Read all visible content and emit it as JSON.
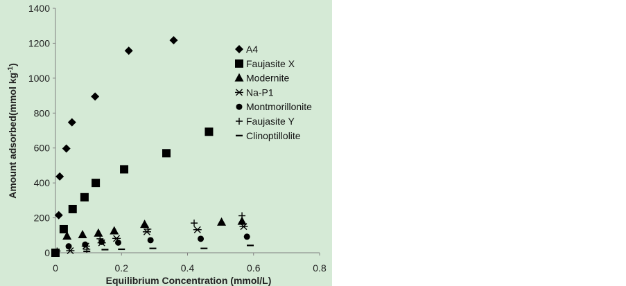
{
  "chart_data": {
    "type": "scatter",
    "background": "#d5ead6",
    "xlabel": "Equilibrium Concentration (mmol/L)",
    "ylabel": "Amount adsorbed(mmol kg",
    "ylabel_sup": "-1",
    "ylabel_end": ")",
    "xlim": [
      0,
      0.8
    ],
    "ylim": [
      0,
      1400
    ],
    "x_ticks": [
      {
        "v": 0,
        "label": "0"
      },
      {
        "v": 0.2,
        "label": "0.2"
      },
      {
        "v": 0.4,
        "label": "0.4"
      },
      {
        "v": 0.6,
        "label": "0.6"
      },
      {
        "v": 0.8,
        "label": "0.8"
      }
    ],
    "y_ticks": [
      {
        "v": 0,
        "label": "0"
      },
      {
        "v": 200,
        "label": "200"
      },
      {
        "v": 400,
        "label": "400"
      },
      {
        "v": 600,
        "label": "600"
      },
      {
        "v": 800,
        "label": "800"
      },
      {
        "v": 1000,
        "label": "1000"
      },
      {
        "v": 1200,
        "label": "1200"
      },
      {
        "v": 1400,
        "label": "1400"
      }
    ],
    "grid": false,
    "legend_position": "right",
    "series": [
      {
        "name": "A4",
        "marker": "diamond",
        "points": [
          [
            0.01,
            215
          ],
          [
            0.013,
            437
          ],
          [
            0.033,
            597
          ],
          [
            0.05,
            747
          ],
          [
            0.12,
            895
          ],
          [
            0.222,
            1157
          ],
          [
            0.358,
            1217
          ]
        ]
      },
      {
        "name": "Faujasite X",
        "marker": "square",
        "points": [
          [
            0.0,
            0
          ],
          [
            0.025,
            135
          ],
          [
            0.052,
            250
          ],
          [
            0.088,
            318
          ],
          [
            0.122,
            400
          ],
          [
            0.208,
            478
          ],
          [
            0.336,
            570
          ],
          [
            0.465,
            693
          ]
        ]
      },
      {
        "name": "Modernite",
        "marker": "triangle",
        "points": [
          [
            0.035,
            95
          ],
          [
            0.082,
            103
          ],
          [
            0.13,
            112
          ],
          [
            0.178,
            125
          ],
          [
            0.27,
            162
          ],
          [
            0.503,
            175
          ],
          [
            0.565,
            180
          ]
        ]
      },
      {
        "name": "Na-P1",
        "marker": "asterisk",
        "points": [
          [
            0.045,
            12
          ],
          [
            0.092,
            38
          ],
          [
            0.14,
            57
          ],
          [
            0.185,
            82
          ],
          [
            0.277,
            120
          ],
          [
            0.43,
            132
          ],
          [
            0.57,
            150
          ]
        ]
      },
      {
        "name": "Montmorillonite",
        "marker": "circle",
        "points": [
          [
            0.04,
            37
          ],
          [
            0.09,
            47
          ],
          [
            0.14,
            62
          ],
          [
            0.19,
            58
          ],
          [
            0.288,
            72
          ],
          [
            0.44,
            80
          ],
          [
            0.58,
            92
          ]
        ]
      },
      {
        "name": "Faujasite Y",
        "marker": "plus",
        "points": [
          [
            0.005,
            10
          ],
          [
            0.095,
            20
          ],
          [
            0.135,
            80
          ],
          [
            0.28,
            135
          ],
          [
            0.42,
            170
          ],
          [
            0.565,
            212
          ]
        ]
      },
      {
        "name": "Clinoptillolite",
        "marker": "dash",
        "points": [
          [
            0.0,
            3
          ],
          [
            0.095,
            8
          ],
          [
            0.15,
            18
          ],
          [
            0.2,
            20
          ],
          [
            0.295,
            25
          ],
          [
            0.45,
            25
          ],
          [
            0.59,
            42
          ]
        ]
      }
    ]
  }
}
